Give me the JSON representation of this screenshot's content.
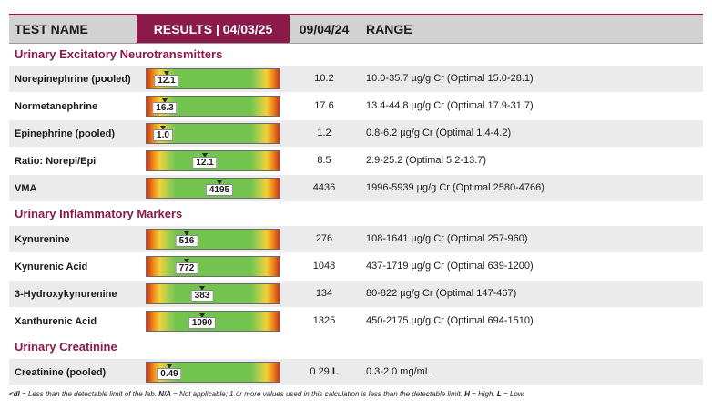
{
  "header": {
    "test_name": "TEST NAME",
    "results": "RESULTS | 04/03/25",
    "prior_date": "09/04/24",
    "range": "RANGE"
  },
  "sections": [
    {
      "title": "Urinary Excitatory Neurotransmitters"
    },
    {
      "title": "Urinary Inflammatory Markers"
    },
    {
      "title": "Urinary Creatinine"
    }
  ],
  "rows": [
    {
      "name": "Norepinephrine (pooled)",
      "value": "12.1",
      "marker_fraction": 0.15,
      "prior": "10.2",
      "prior_flag": "",
      "range": "10.0-35.7 µg/g Cr (Optimal 15.0-28.1)"
    },
    {
      "name": "Normetanephrine",
      "value": "16.3",
      "marker_fraction": 0.14,
      "prior": "17.6",
      "prior_flag": "",
      "range": "13.4-44.8 µg/g Cr (Optimal 17.9-31.7)"
    },
    {
      "name": "Epinephrine (pooled)",
      "value": "1.0",
      "marker_fraction": 0.12,
      "prior": "1.2",
      "prior_flag": "",
      "range": "0.8-6.2 µg/g Cr (Optimal 1.4-4.2)"
    },
    {
      "name": "Ratio: Norepi/Epi",
      "value": "12.1",
      "marker_fraction": 0.44,
      "prior": "8.5",
      "prior_flag": "",
      "range": "2.9-25.2 (Optimal 5.2-13.7)"
    },
    {
      "name": "VMA",
      "value": "4195",
      "marker_fraction": 0.55,
      "prior": "4436",
      "prior_flag": "",
      "range": "1996-5939 µg/g Cr (Optimal 2580-4766)"
    },
    {
      "name": "Kynurenine",
      "value": "516",
      "marker_fraction": 0.3,
      "prior": "276",
      "prior_flag": "",
      "range": "108-1641 µg/g Cr (Optimal 257-960)"
    },
    {
      "name": "Kynurenic Acid",
      "value": "772",
      "marker_fraction": 0.3,
      "prior": "1048",
      "prior_flag": "",
      "range": "437-1719 µg/g Cr (Optimal 639-1200)"
    },
    {
      "name": "3-Hydroxykynurenine",
      "value": "383",
      "marker_fraction": 0.42,
      "prior": "134",
      "prior_flag": "",
      "range": "80-822 µg/g Cr (Optimal 147-467)"
    },
    {
      "name": "Xanthurenic Acid",
      "value": "1090",
      "marker_fraction": 0.42,
      "prior": "1325",
      "prior_flag": "",
      "range": "450-2175 µg/g Cr (Optimal 694-1510)"
    },
    {
      "name": "Creatinine (pooled)",
      "value": "0.49",
      "marker_fraction": 0.17,
      "prior": "0.29",
      "prior_flag": "L",
      "range": "0.3-2.0 mg/mL"
    }
  ],
  "footnote": {
    "dl_key": "<dl",
    "dl_text": " = Less than the detectable limit of the lab. ",
    "na_key": "N/A",
    "na_text": " = Not applicable; 1 or more values used in this calculation is less than the detectable limit. ",
    "h_key": "H",
    "h_text": " = High. ",
    "l_key": "L",
    "l_text": " = Low."
  },
  "colors": {
    "accent": "#8b1a4a",
    "header_bg": "#d2d2d2",
    "row_shade": "#ebebeb",
    "bar_red": "#c8321c",
    "bar_orange": "#ee8a1a",
    "bar_yellow": "#f1d23a",
    "bar_green": "#72c44f"
  }
}
